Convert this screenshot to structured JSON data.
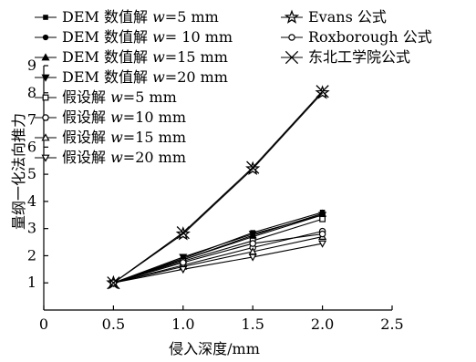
{
  "chart_data": {
    "type": "line",
    "xlabel": "侵入深度/mm",
    "ylabel": "量纲一化法向推力",
    "xlim": [
      0,
      2.5
    ],
    "ylim": [
      0,
      9
    ],
    "xticks": [
      "0",
      "0.5",
      "1.0",
      "1.5",
      "2.0",
      "2.5"
    ],
    "yticks": [
      "1",
      "2",
      "3",
      "4",
      "5",
      "6",
      "7",
      "8",
      "9"
    ],
    "grid": false,
    "legend_position": "top",
    "x": [
      0.5,
      1.0,
      1.5,
      2.0
    ],
    "series": [
      {
        "label_prefix": "DEM 数值解 ",
        "var": "w",
        "label_suffix": "=5 mm",
        "marker": "square-filled",
        "values": [
          1.0,
          1.9,
          2.85,
          3.6
        ]
      },
      {
        "label_prefix": "DEM 数值解 ",
        "var": "w",
        "label_suffix": "= 10 mm",
        "marker": "circle-filled",
        "values": [
          1.0,
          1.85,
          2.7,
          3.5
        ]
      },
      {
        "label_prefix": "DEM 数值解 ",
        "var": "w",
        "label_suffix": "=15 mm",
        "marker": "triangle-up-filled",
        "values": [
          1.0,
          1.85,
          2.75,
          3.55
        ]
      },
      {
        "label_prefix": "DEM 数值解 ",
        "var": "w",
        "label_suffix": "=20 mm",
        "marker": "triangle-down-filled",
        "values": [
          1.0,
          1.95,
          2.8,
          3.5
        ]
      },
      {
        "label_prefix": "假设解 ",
        "var": "w",
        "label_suffix": "=5 mm",
        "marker": "square-open",
        "values": [
          1.0,
          1.8,
          2.55,
          3.35
        ]
      },
      {
        "label_prefix": "假设解 ",
        "var": "w",
        "label_suffix": "=10 mm",
        "marker": "circle-open",
        "values": [
          1.0,
          1.65,
          2.3,
          2.9
        ]
      },
      {
        "label_prefix": "假设解 ",
        "var": "w",
        "label_suffix": "=15 mm",
        "marker": "triangle-up-open",
        "values": [
          1.0,
          1.6,
          2.15,
          2.7
        ]
      },
      {
        "label_prefix": "假设解 ",
        "var": "w",
        "label_suffix": "=20 mm",
        "marker": "triangle-down-open",
        "values": [
          1.0,
          1.5,
          1.95,
          2.45
        ]
      },
      {
        "label_prefix": "Evans 公式",
        "var": "",
        "label_suffix": "",
        "marker": "star-open",
        "values": [
          1.0,
          2.8,
          5.2,
          8.0
        ]
      },
      {
        "label_prefix": "Roxborough 公式",
        "var": "",
        "label_suffix": "",
        "marker": "circle-open",
        "values": [
          1.0,
          1.75,
          2.45,
          2.8
        ]
      },
      {
        "label_prefix": "东北工学院公式",
        "var": "",
        "label_suffix": "",
        "marker": "x-cross",
        "values": [
          1.0,
          2.85,
          5.25,
          8.05
        ]
      }
    ]
  }
}
